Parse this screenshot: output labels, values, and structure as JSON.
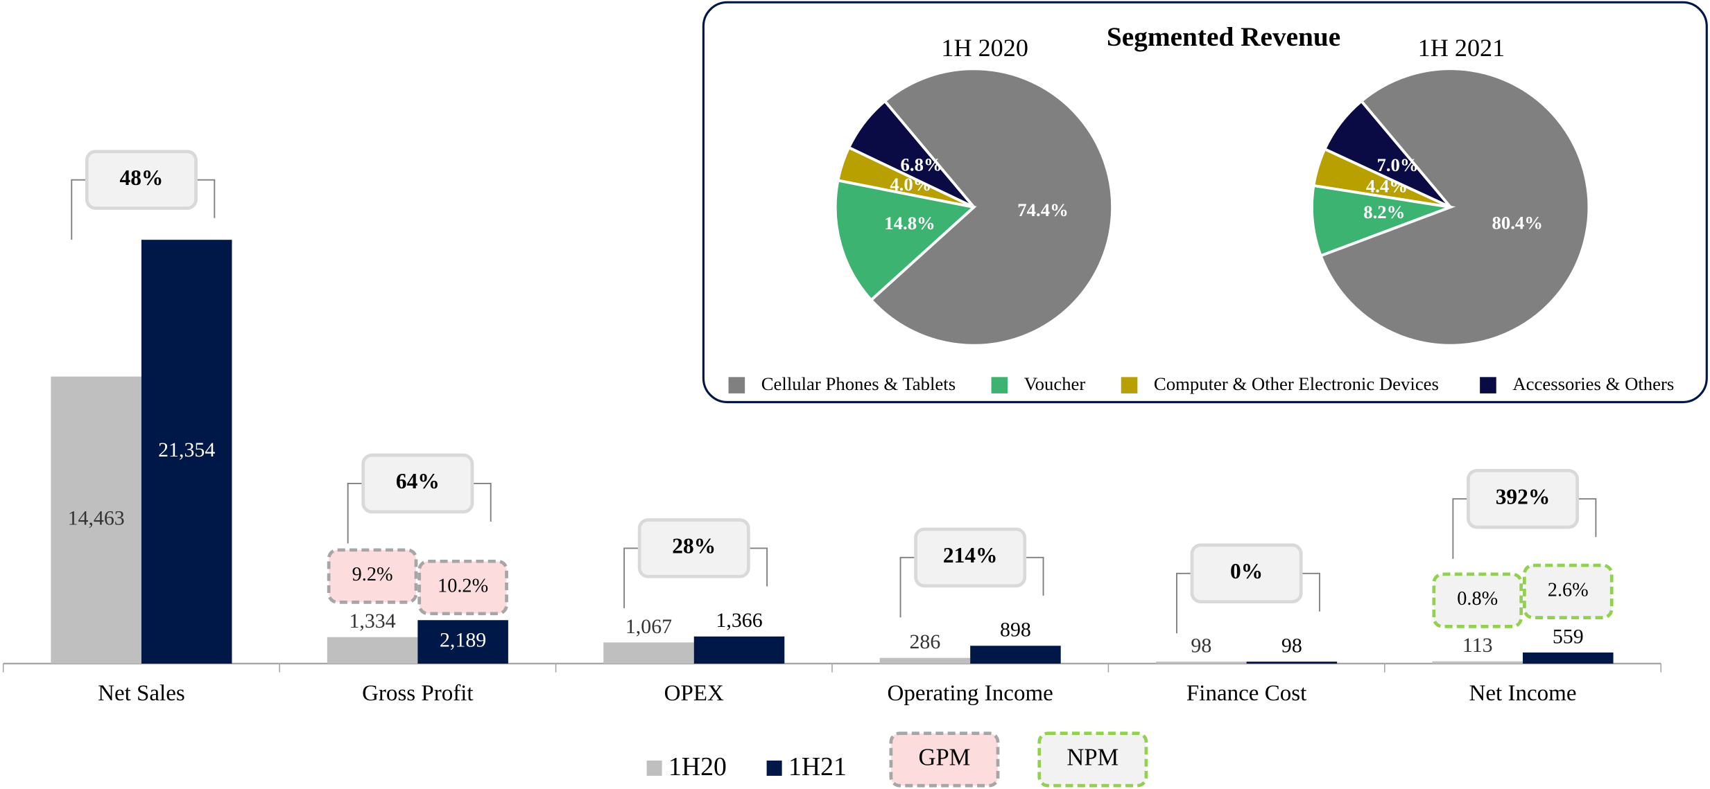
{
  "inset_title": "Segmented Revenue",
  "chart_data": [
    {
      "type": "bar",
      "categories": [
        "Net Sales",
        "Gross Profit",
        "OPEX",
        "Operating Income",
        "Finance Cost",
        "Net Income"
      ],
      "series": [
        {
          "name": "1H20",
          "color": "#bfbfbf",
          "values": [
            14463,
            1334,
            1067,
            286,
            98,
            113
          ],
          "value_labels": [
            "14,463",
            "1,334",
            "1,067",
            "286",
            "98",
            "113"
          ]
        },
        {
          "name": "1H21",
          "color": "#001848",
          "values": [
            21354,
            2189,
            1366,
            898,
            98,
            559
          ],
          "value_labels": [
            "21,354",
            "2,189",
            "1,366",
            "898",
            "98",
            "559"
          ]
        }
      ],
      "growth_labels": [
        "48%",
        "64%",
        "28%",
        "214%",
        "0%",
        "392%"
      ],
      "margins": [
        {
          "name": "GPM",
          "category": "Gross Profit",
          "labels": [
            "9.2%",
            "10.2%"
          ],
          "fill": "#fcdcdc",
          "stroke": "#a6a6a6"
        },
        {
          "name": "NPM",
          "category": "Net Income",
          "labels": [
            "0.8%",
            "2.6%"
          ],
          "fill": "#f2f2f2",
          "stroke": "#92d050"
        }
      ]
    },
    {
      "type": "pie",
      "title": "1H 2020",
      "categories": [
        "Cellular Phones & Tablets",
        "Voucher",
        "Computer & Other Electronic Devices",
        "Accessories & Others"
      ],
      "colors": [
        "#808080",
        "#3cb371",
        "#b8a000",
        "#0a0a45"
      ],
      "values": [
        74.4,
        14.8,
        4.0,
        6.8
      ],
      "value_labels": [
        "74.4%",
        "14.8%",
        "4.0%",
        "6.8%"
      ]
    },
    {
      "type": "pie",
      "title": "1H 2021",
      "categories": [
        "Cellular Phones & Tablets",
        "Voucher",
        "Computer & Other Electronic Devices",
        "Accessories & Others"
      ],
      "colors": [
        "#808080",
        "#3cb371",
        "#b8a000",
        "#0a0a45"
      ],
      "values": [
        80.4,
        8.2,
        4.4,
        7.0
      ],
      "value_labels": [
        "80.4%",
        "8.2%",
        "4.4%",
        "7.0%"
      ]
    }
  ]
}
